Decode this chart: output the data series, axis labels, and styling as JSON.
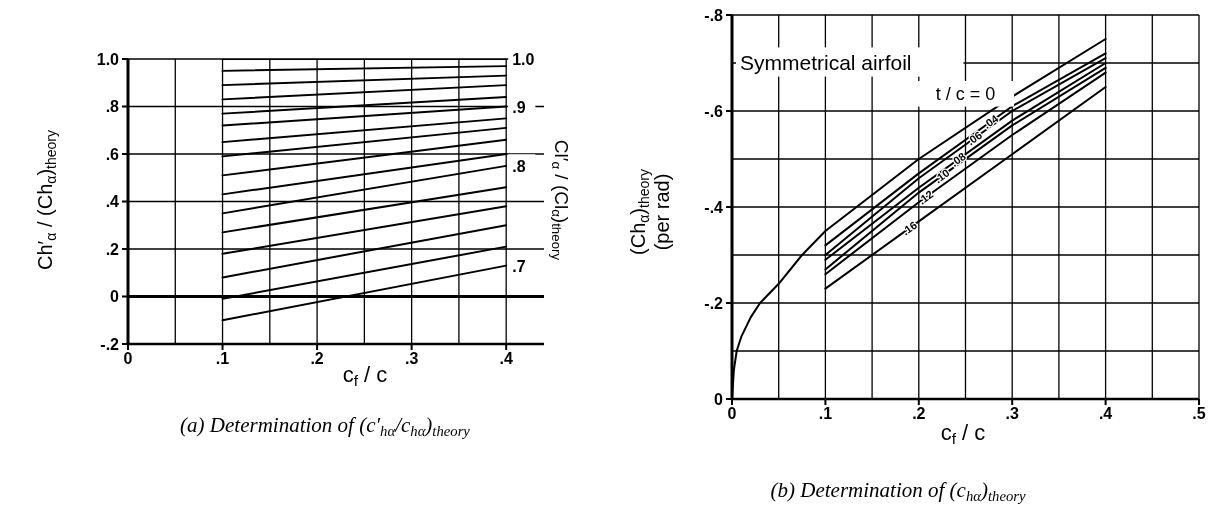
{
  "chart_data": [
    {
      "type": "line",
      "xlabel": "c$_{f}$ / c",
      "ylabel": "Ch′$_{α}$ / (Ch$_{α}$)$_{theory}$",
      "annotations": [
        "Cl′$_{α}$ / (Cl$_{α}$)$_{theory}$",
        "(a) Determination of (c′$_{hα}$/c$_{hα}$)$_{theory}$"
      ],
      "x": [
        0.1,
        0.4
      ],
      "series": [
        {
          "name": "1.0",
          "color": "#000000",
          "values": [
            1,
            1
          ]
        },
        {
          "color": "#000000",
          "values": [
            0.95,
            0.97
          ]
        },
        {
          "color": "#000000",
          "values": [
            0.89,
            0.93
          ]
        },
        {
          "color": "#000000",
          "values": [
            0.83,
            0.89
          ]
        },
        {
          "color": "#000000",
          "values": [
            0.77,
            0.84
          ]
        },
        {
          "name": ".9",
          "color": "#000000",
          "values": [
            0.72,
            0.8
          ]
        },
        {
          "color": "#000000",
          "values": [
            0.65,
            0.75
          ]
        },
        {
          "color": "#000000",
          "values": [
            0.59,
            0.71
          ]
        },
        {
          "color": "#000000",
          "values": [
            0.51,
            0.66
          ]
        },
        {
          "color": "#000000",
          "values": [
            0.43,
            0.6
          ]
        },
        {
          "name": ".8",
          "color": "#000000",
          "values": [
            0.35,
            0.55
          ]
        },
        {
          "color": "#000000",
          "values": [
            0.27,
            0.46
          ]
        },
        {
          "color": "#000000",
          "values": [
            0.18,
            0.38
          ]
        },
        {
          "color": "#000000",
          "values": [
            0.08,
            0.3
          ]
        },
        {
          "color": "#000000",
          "values": [
            -0.01,
            0.21
          ]
        },
        {
          "name": ".7",
          "color": "#000000",
          "values": [
            -0.1,
            0.13
          ]
        }
      ],
      "xlim": [
        0,
        0.44
      ],
      "xticks": [
        0,
        {
          "value": 0.05,
          "label": null
        },
        {
          "value": 0.1,
          "label": ".1"
        },
        {
          "value": 0.15,
          "label": null
        },
        {
          "value": 0.2,
          "label": ".2"
        },
        {
          "value": 0.25,
          "label": null
        },
        {
          "value": 0.3,
          "label": ".3"
        },
        {
          "value": 0.35,
          "label": null
        },
        {
          "value": 0.4,
          "label": ".4"
        }
      ],
      "ylim": [
        -0.2,
        1
      ],
      "yticks": [
        {
          "value": -0.2,
          "label": "-.2"
        },
        0,
        {
          "value": 0.2,
          "label": ".2"
        },
        {
          "value": 0.4,
          "label": ".4"
        },
        {
          "value": 0.6,
          "label": ".6"
        },
        {
          "value": 0.8,
          "label": ".8"
        },
        {
          "value": 1,
          "label": "1.0"
        }
      ],
      "grid": true,
      "ref_lines": [
        {
          "axis": "y",
          "value": 0,
          "color": "#000000"
        }
      ]
    },
    {
      "type": "line",
      "xlabel": "c$_{f}$ / c",
      "ylabel": "(Ch$_{α}$)$_{theory}$\n(per rad)",
      "annotations": [
        "Symmetrical airfoil",
        "(b) Determination of (c$_{hα}$)$_{theory}$"
      ],
      "x": [
        0.1,
        0.2,
        0.3,
        0.4
      ],
      "series": [
        {
          "name": "t / c = 0",
          "color": "#000000",
          "x": [
            0,
            0.002,
            0.005,
            0.01,
            0.02,
            0.03,
            0.05,
            0.075,
            0.1,
            0.2,
            0.3,
            0.4
          ],
          "values": [
            0,
            -0.06,
            -0.1,
            -0.13,
            -0.17,
            -0.2,
            -0.24,
            -0.3,
            -0.35,
            -0.5,
            -0.63,
            -0.75
          ]
        },
        {
          "name": ".04",
          "color": "#000000",
          "values": [
            -0.32,
            -0.47,
            -0.61,
            -0.72
          ]
        },
        {
          "name": ".06",
          "color": "#000000",
          "values": [
            -0.3,
            -0.46,
            -0.6,
            -0.71
          ]
        },
        {
          "name": ".08",
          "color": "#000000",
          "values": [
            -0.29,
            -0.44,
            -0.58,
            -0.7
          ]
        },
        {
          "name": ".10",
          "color": "#000000",
          "values": [
            -0.27,
            -0.43,
            -0.57,
            -0.69
          ]
        },
        {
          "name": ".12",
          "color": "#000000",
          "values": [
            -0.26,
            -0.41,
            -0.55,
            -0.68
          ]
        },
        {
          "name": ".16",
          "color": "#000000",
          "values": [
            -0.23,
            -0.37,
            -0.51,
            -0.65
          ]
        }
      ],
      "xlim": [
        0,
        0.5
      ],
      "xticks": [
        0,
        {
          "value": 0.05,
          "label": null
        },
        {
          "value": 0.1,
          "label": ".1"
        },
        {
          "value": 0.15,
          "label": null
        },
        {
          "value": 0.2,
          "label": ".2"
        },
        {
          "value": 0.25,
          "label": null
        },
        {
          "value": 0.3,
          "label": ".3"
        },
        {
          "value": 0.35,
          "label": null
        },
        {
          "value": 0.4,
          "label": ".4"
        },
        {
          "value": 0.45,
          "label": null
        },
        {
          "value": 0.5,
          "label": ".5"
        }
      ],
      "ylim": [
        0,
        -0.8
      ],
      "yticks": [
        0,
        {
          "value": -0.1,
          "label": null
        },
        {
          "value": -0.2,
          "label": "-.2"
        },
        {
          "value": -0.3,
          "label": null
        },
        {
          "value": -0.4,
          "label": "-.4"
        },
        {
          "value": -0.5,
          "label": null
        },
        {
          "value": -0.6,
          "label": "-.6"
        },
        {
          "value": -0.7,
          "label": null
        },
        {
          "value": -0.8,
          "label": "-.8"
        }
      ],
      "grid": true
    }
  ]
}
